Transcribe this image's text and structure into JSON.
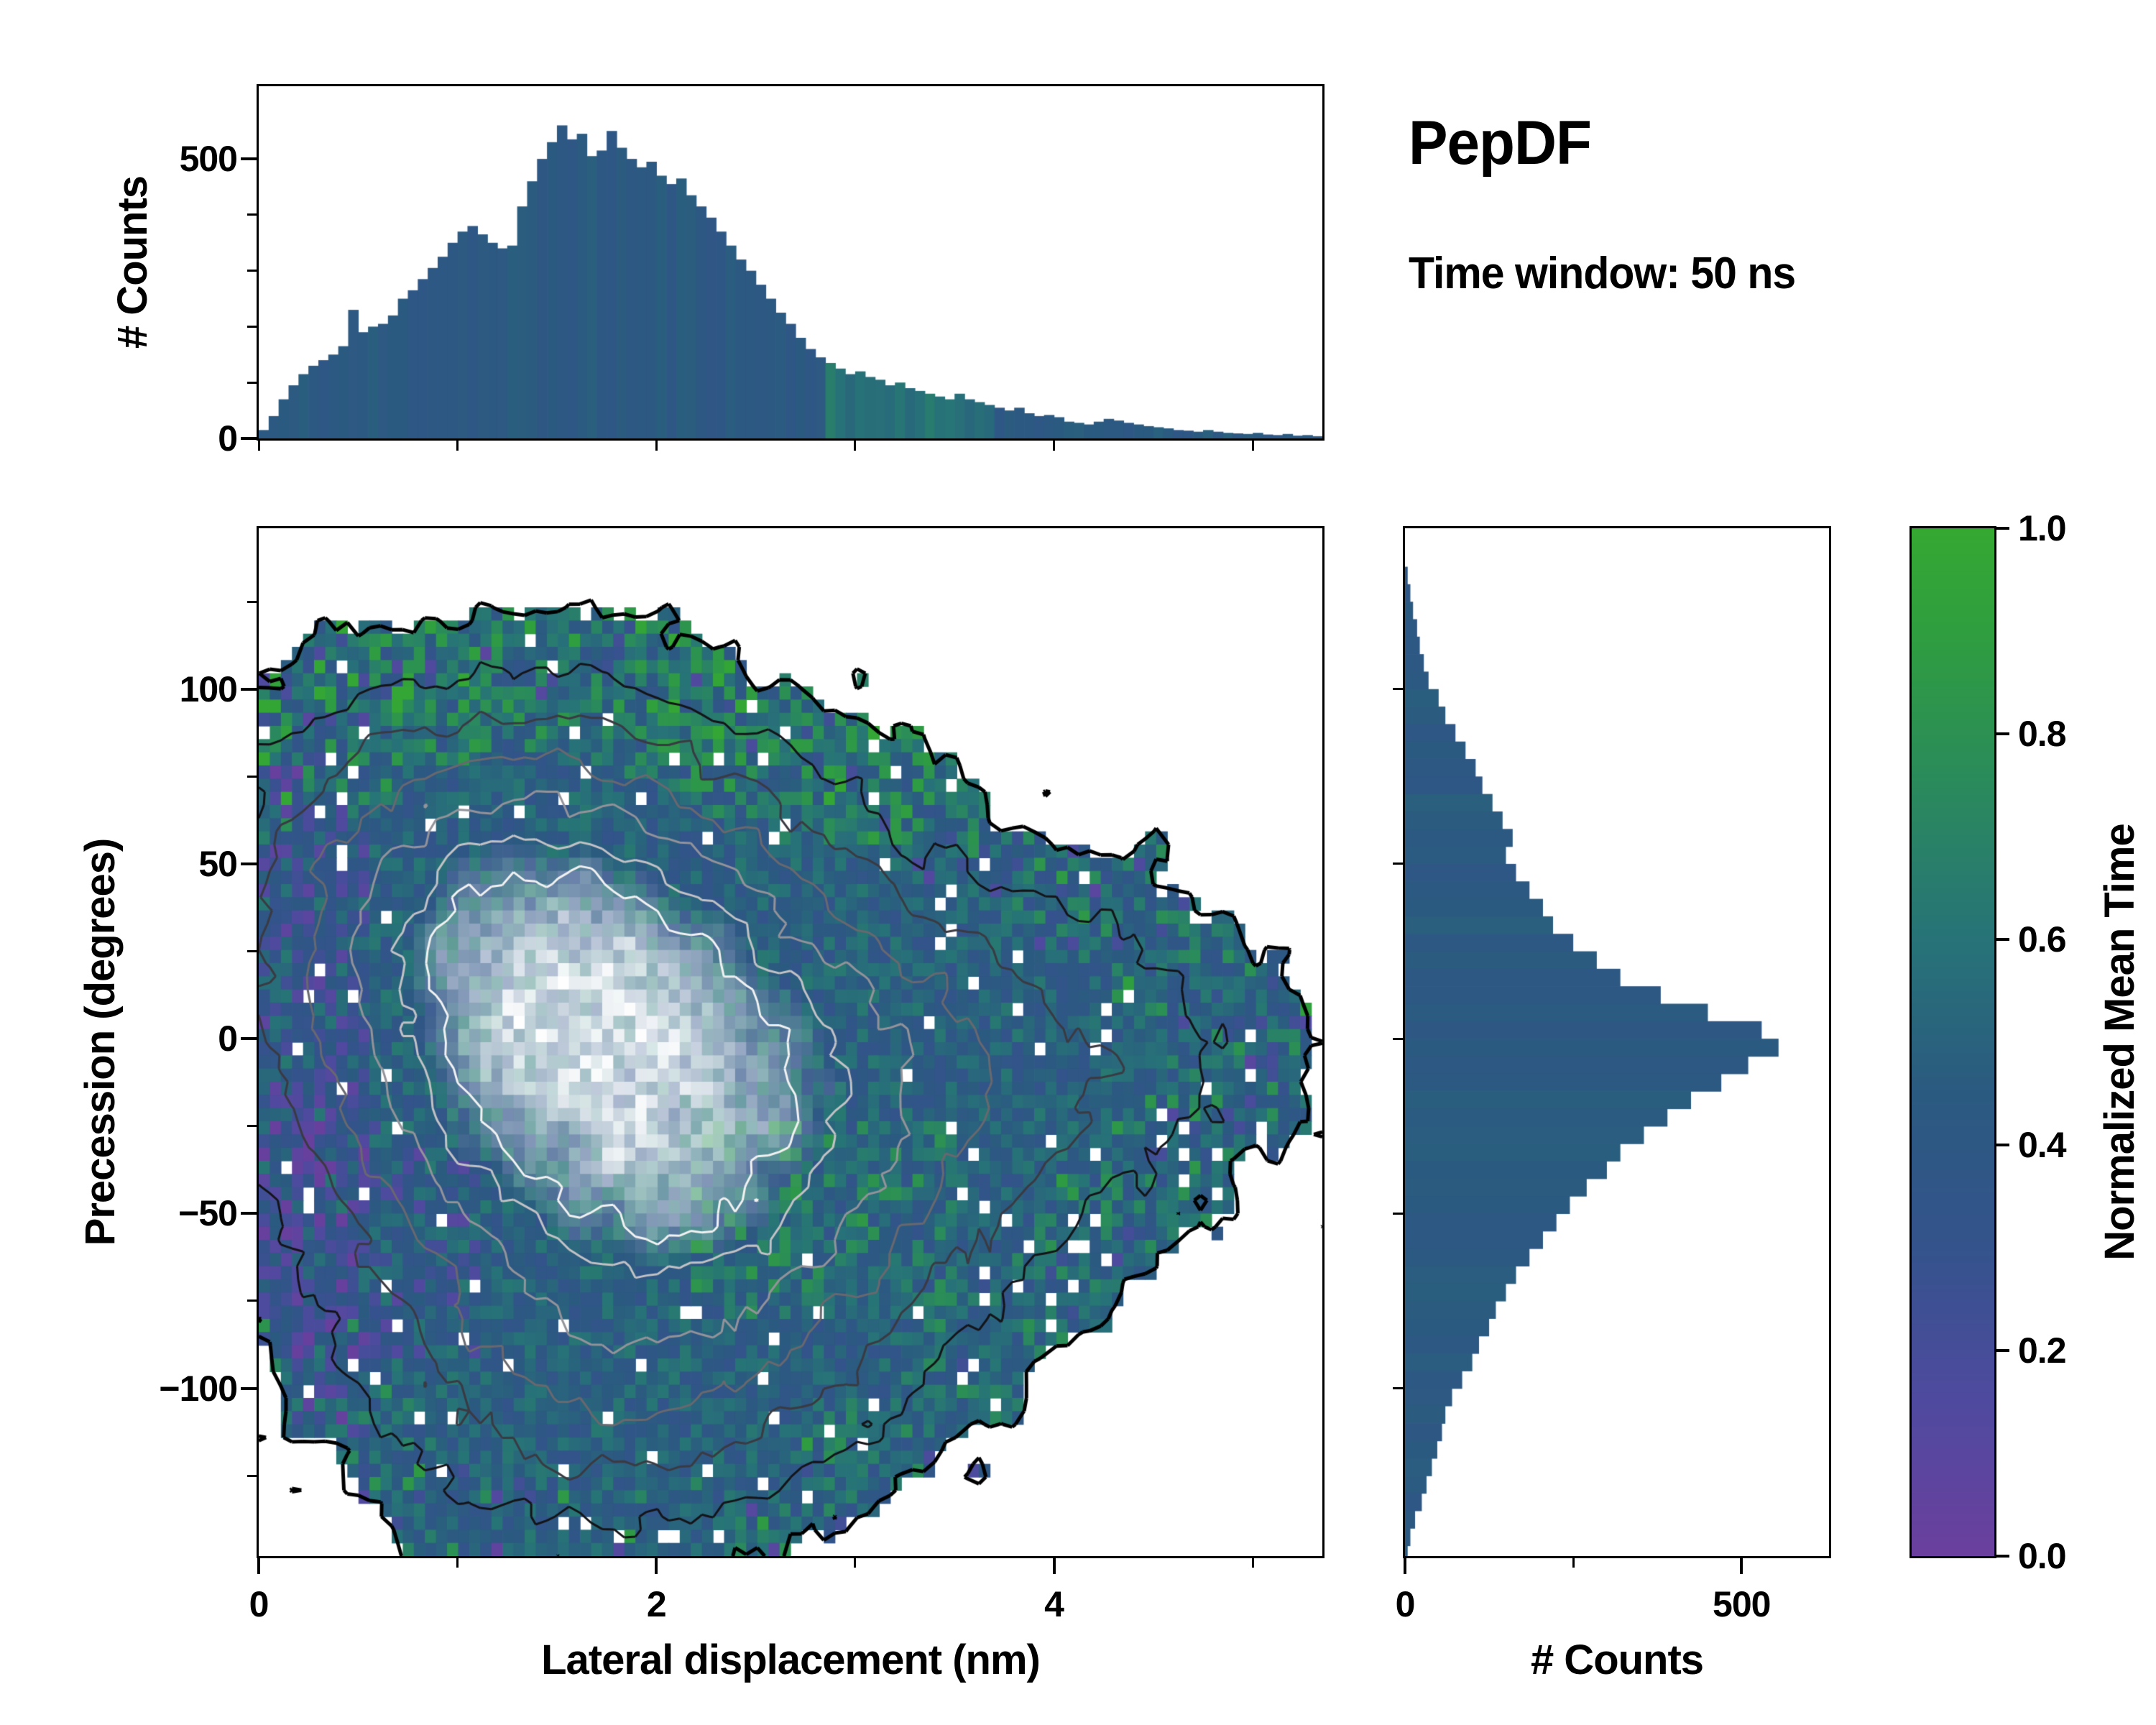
{
  "title": "PepDF",
  "subtitle": "Time window: 50 ns",
  "colorbar": {
    "label": "Normalized Mean Time",
    "tick_labels": [
      "0.0",
      "0.2",
      "0.4",
      "0.6",
      "0.8",
      "1.0"
    ],
    "tick_values": [
      0.0,
      0.2,
      0.4,
      0.6,
      0.8,
      1.0
    ],
    "stops": [
      [
        0.0,
        "#6b3f9e"
      ],
      [
        0.15,
        "#4f4a9f"
      ],
      [
        0.3,
        "#34538c"
      ],
      [
        0.45,
        "#2b5a80"
      ],
      [
        0.6,
        "#277378"
      ],
      [
        0.75,
        "#2a8a5c"
      ],
      [
        0.9,
        "#2f9e3f"
      ],
      [
        1.0,
        "#35a832"
      ]
    ]
  },
  "chart_data": [
    {
      "type": "bar",
      "name": "top-marginal-histogram",
      "xlabel": "Lateral displacement (nm)",
      "ylabel": "# Counts",
      "xlim": [
        0,
        5.35
      ],
      "ylim": [
        0,
        630
      ],
      "ytick_labels": [
        "0",
        "500"
      ],
      "ytick_values": [
        0,
        500
      ],
      "minor_ytick_values": [
        100,
        200,
        300,
        400
      ],
      "xtick_values_unlabeled": [
        0,
        1,
        2,
        3,
        4,
        5
      ],
      "bin_start": 0.025,
      "bin_step": 0.05,
      "values": [
        15,
        40,
        70,
        95,
        115,
        130,
        140,
        150,
        165,
        230,
        190,
        200,
        205,
        220,
        250,
        265,
        285,
        305,
        325,
        350,
        370,
        380,
        365,
        350,
        340,
        345,
        415,
        460,
        500,
        530,
        560,
        535,
        545,
        505,
        515,
        550,
        520,
        500,
        485,
        495,
        470,
        455,
        465,
        435,
        415,
        395,
        370,
        345,
        320,
        300,
        275,
        250,
        225,
        205,
        180,
        160,
        145,
        135,
        125,
        115,
        120,
        110,
        105,
        95,
        100,
        90,
        85,
        80,
        75,
        70,
        80,
        70,
        65,
        60,
        55,
        50,
        55,
        45,
        40,
        42,
        38,
        30,
        28,
        25,
        30,
        35,
        32,
        28,
        25,
        22,
        20,
        18,
        15,
        14,
        12,
        15,
        12,
        10,
        9,
        8,
        10,
        7,
        6,
        8,
        5,
        6,
        4,
        3,
        3,
        2
      ],
      "bar_color_value": 0.43,
      "color_jitter": 0.06,
      "green_region": {
        "x": [
          2.85,
          3.7
        ],
        "value": 0.6
      }
    },
    {
      "type": "heatmap",
      "name": "joint-2d-histogram",
      "xlabel": "Lateral displacement (nm)",
      "ylabel": "Precession (degrees)",
      "value_label": "Normalized Mean Time",
      "value_range": [
        0,
        1
      ],
      "xlim": [
        0,
        5.35
      ],
      "ylim": [
        -148,
        146
      ],
      "xtick_labels": [
        "0",
        "2",
        "4"
      ],
      "xtick_values": [
        0,
        2,
        4
      ],
      "minor_xtick_values": [
        1,
        3,
        5
      ],
      "ytick_labels": [
        "100",
        "50",
        "0",
        "−50",
        "−100"
      ],
      "ytick_values": [
        100,
        50,
        0,
        -50,
        -100
      ],
      "minor_ytick_values": [
        125,
        75,
        25,
        -25,
        -75,
        -125
      ],
      "grid": {
        "nx": 96,
        "ny": 78
      },
      "seed": 7,
      "density_blobs": [
        {
          "cx": 1.6,
          "cy": 5,
          "sx": 1.05,
          "sy": 52,
          "w": 1.0
        },
        {
          "cx": 3.6,
          "cy": -10,
          "sx": 1.0,
          "sy": 40,
          "w": 0.3
        },
        {
          "cx": 1.7,
          "cy": -105,
          "sx": 0.95,
          "sy": 34,
          "w": 0.3
        },
        {
          "cx": 0.9,
          "cy": 60,
          "sx": 0.85,
          "sy": 35,
          "w": 0.24
        },
        {
          "cx": 2.4,
          "cy": -60,
          "sx": 0.95,
          "sy": 38,
          "w": 0.3
        },
        {
          "cx": 4.5,
          "cy": 5,
          "sx": 0.7,
          "sy": 28,
          "w": 0.09
        }
      ],
      "mask_threshold": 0.112,
      "hole_fraction": 0.035,
      "value_base": 0.48,
      "value_jitter": 0.32,
      "center_white_threshold": 0.82,
      "contour_levels": [
        [
          0.115,
          "#000000",
          5
        ],
        [
          0.24,
          "#141418",
          3
        ],
        [
          0.38,
          "#3a3a42",
          3
        ],
        [
          0.52,
          "#68686f",
          3
        ],
        [
          0.66,
          "#93939a",
          3
        ],
        [
          0.8,
          "#c2c2c6",
          3
        ],
        [
          0.9,
          "#f2f2f2",
          3
        ]
      ]
    },
    {
      "type": "bar",
      "orientation": "horizontal",
      "name": "right-marginal-histogram",
      "xlabel": "# Counts",
      "ylabel": "Precession (degrees)",
      "xlim": [
        0,
        630
      ],
      "ylim": [
        -148,
        146
      ],
      "xtick_labels": [
        "0",
        "500"
      ],
      "xtick_values": [
        0,
        500
      ],
      "minor_xtick_values": [
        250
      ],
      "ytick_values_unlabeled": [
        100,
        50,
        0,
        -50,
        -100
      ],
      "bin_start": 132.5,
      "bin_step": -5,
      "values": [
        4,
        8,
        12,
        18,
        22,
        28,
        35,
        50,
        60,
        75,
        90,
        105,
        115,
        130,
        145,
        160,
        150,
        165,
        185,
        205,
        220,
        250,
        285,
        320,
        380,
        450,
        530,
        555,
        510,
        470,
        425,
        390,
        355,
        320,
        300,
        270,
        245,
        225,
        205,
        185,
        165,
        150,
        135,
        125,
        110,
        100,
        85,
        70,
        60,
        55,
        48,
        40,
        32,
        25,
        15,
        8,
        4
      ],
      "bar_color_value": 0.43,
      "color_jitter": 0.05
    }
  ]
}
